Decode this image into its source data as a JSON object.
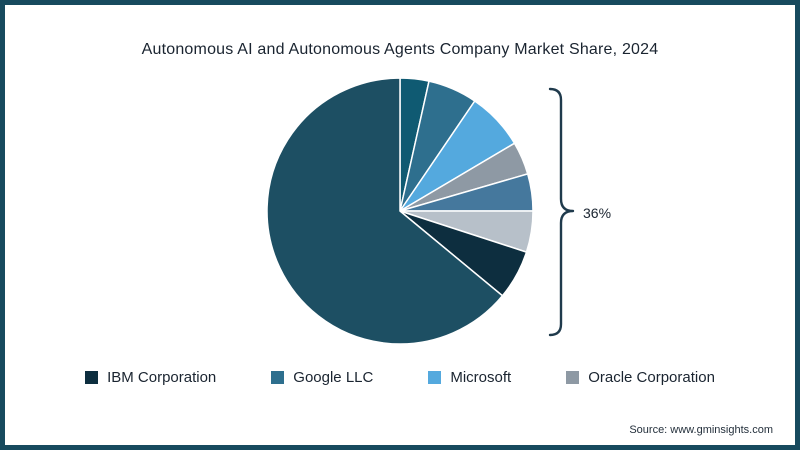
{
  "source": "Source: www.gminsights.com",
  "colors": {
    "frame_border": "#174a5e",
    "bracket": "#1f3a4c",
    "text": "#1a2430"
  },
  "chart_data": {
    "type": "pie",
    "title": "Autonomous AI and Autonomous Agents Company Market Share, 2024",
    "unit": "%",
    "start_angle": "top, clockwise",
    "slices": [
      {
        "label": "",
        "value": 3.5,
        "color": "#0f5a72"
      },
      {
        "label": "Google LLC",
        "value": 6,
        "color": "#2e6f8e"
      },
      {
        "label": "Microsoft",
        "value": 7,
        "color": "#54a9de"
      },
      {
        "label": "Oracle Corporation",
        "value": 4,
        "color": "#8e99a4"
      },
      {
        "label": "",
        "value": 4.5,
        "color": "#45789d"
      },
      {
        "label": "",
        "value": 5,
        "color": "#b7c0c9"
      },
      {
        "label": "IBM Corporation",
        "value": 6,
        "color": "#0d2e3f"
      },
      {
        "label": "",
        "value": 64,
        "color": "#1d4f63"
      }
    ],
    "annotation": {
      "text": "36%",
      "meaning": "combined share of the bracketed smaller segments"
    },
    "legend": [
      {
        "label": "IBM Corporation",
        "color": "#0d2e3f"
      },
      {
        "label": "Google LLC",
        "color": "#2e6f8e"
      },
      {
        "label": "Microsoft",
        "color": "#54a9de"
      },
      {
        "label": "Oracle Corporation",
        "color": "#8e99a4"
      }
    ],
    "legend_position": "bottom",
    "gridlines": false
  }
}
